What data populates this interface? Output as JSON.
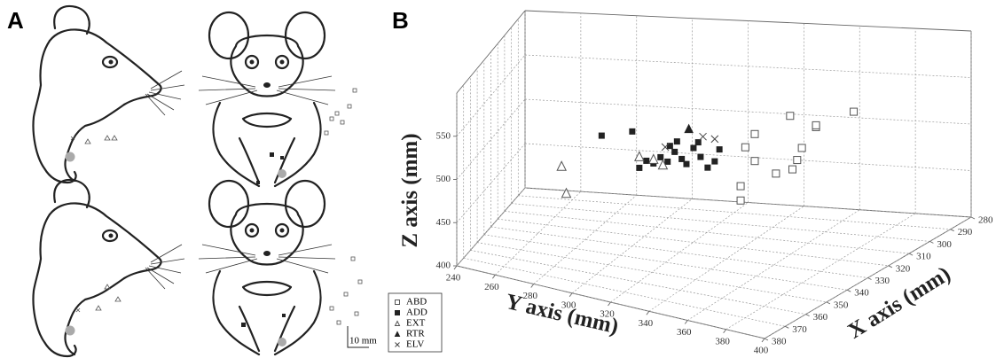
{
  "panel_a": {
    "label": "A",
    "scale_bar": "10 mm"
  },
  "chart_data": {
    "type": "scatter3d",
    "panel_label": "B",
    "xlabel": "X axis (mm)",
    "ylabel": "Y axis (mm)",
    "zlabel": "Z axis (mm)",
    "xlim": [
      280,
      380
    ],
    "ylim": [
      240,
      400
    ],
    "zlim": [
      400,
      600
    ],
    "xticks": [
      280,
      290,
      300,
      310,
      320,
      330,
      340,
      350,
      360,
      370,
      380
    ],
    "yticks": [
      240,
      260,
      280,
      300,
      320,
      340,
      360,
      380,
      400
    ],
    "zticks": [
      400,
      450,
      500,
      550
    ],
    "grid": true,
    "series": [
      {
        "name": "ABD",
        "marker": "square-open",
        "color": "#555555",
        "x": [
          330,
          330,
          330,
          330,
          330,
          330,
          330,
          330,
          330,
          330,
          330,
          330,
          330
        ],
        "y": [
          394,
          378,
          367,
          352,
          352,
          348,
          372,
          370,
          368,
          361,
          346,
          346,
          378
        ],
        "z": [
          581,
          559,
          568,
          543,
          513,
          527,
          534,
          520,
          509,
          502,
          483,
          467,
          561
        ]
      },
      {
        "name": "ADD",
        "marker": "square",
        "color": "#222222",
        "x": [
          330,
          330,
          330,
          330,
          330,
          330,
          330,
          330,
          330,
          330,
          330,
          330,
          330,
          330,
          330,
          330,
          330,
          330
        ],
        "y": [
          287,
          300,
          309,
          312,
          315,
          318,
          321,
          323,
          326,
          329,
          332,
          335,
          337,
          303,
          306,
          319,
          316,
          328
        ],
        "z": [
          520,
          529,
          496,
          504,
          500,
          512,
          505,
          500,
          519,
          510,
          499,
          507,
          521,
          489,
          498,
          524,
          518,
          526
        ]
      },
      {
        "name": "EXT",
        "marker": "triangle-open",
        "color": "#555555",
        "x": [
          330,
          330,
          330,
          330,
          330
        ],
        "y": [
          270,
          272,
          303,
          309,
          313
        ],
        "z": [
          480,
          450,
          502,
          501,
          496
        ]
      },
      {
        "name": "RTR",
        "marker": "triangle",
        "color": "#222222",
        "x": [
          330
        ],
        "y": [
          324
        ],
        "z": [
          540
        ]
      },
      {
        "name": "ELV",
        "marker": "x",
        "color": "#444444",
        "x": [
          330,
          330,
          330
        ],
        "y": [
          314,
          330,
          335
        ],
        "z": [
          516,
          533,
          532
        ]
      }
    ]
  }
}
